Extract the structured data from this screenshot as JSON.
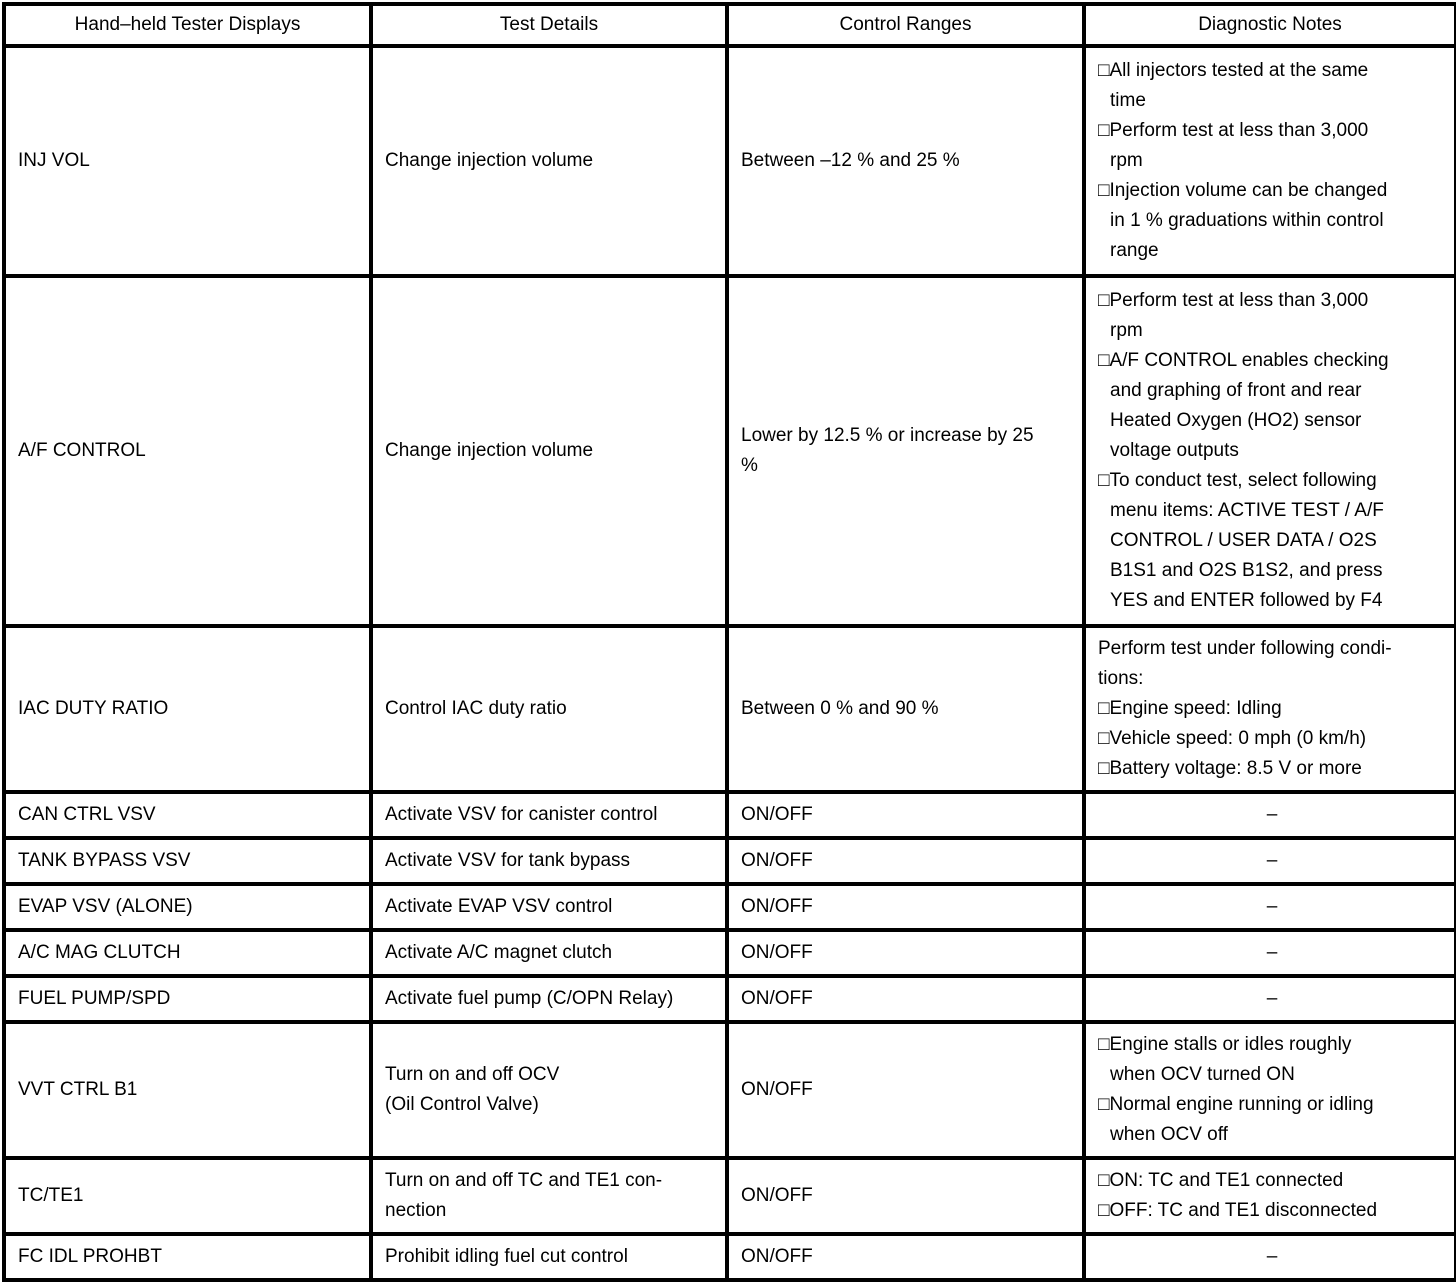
{
  "table": {
    "bullet_char": "□",
    "headers": [
      "Hand–held Tester Displays",
      "Test Details",
      "Control Ranges",
      "Diagnostic Notes"
    ],
    "empty_note_symbol": "–",
    "rows": [
      {
        "display": "INJ VOL",
        "test_details": "Change injection volume",
        "control_range": "Between –12 % and 25 %",
        "notes": [
          {
            "bullet": true,
            "text": "All injectors tested at the same\ntime"
          },
          {
            "bullet": true,
            "text": "Perform test at less than 3,000\nrpm"
          },
          {
            "bullet": true,
            "text": "Injection volume can be changed\nin 1 % graduations within control\nrange"
          }
        ]
      },
      {
        "display": "A/F CONTROL",
        "test_details": "Change injection volume",
        "control_range": "Lower by 12.5 % or increase by 25\n%",
        "notes": [
          {
            "bullet": true,
            "text": "Perform test at less than 3,000\nrpm"
          },
          {
            "bullet": true,
            "text": "A/F CONTROL enables checking\nand graphing of front and rear\nHeated Oxygen (HO2) sensor\nvoltage outputs"
          },
          {
            "bullet": true,
            "text": "To conduct test, select following\nmenu items: ACTIVE TEST / A/F\nCONTROL / USER DATA / O2S\nB1S1 and O2S B1S2, and press\nYES and ENTER followed by F4"
          }
        ]
      },
      {
        "display": "IAC DUTY RATIO",
        "test_details": "Control IAC duty ratio",
        "control_range": "Between 0 % and 90 %",
        "notes": [
          {
            "bullet": false,
            "text": "Perform test under following condi-\ntions:"
          },
          {
            "bullet": true,
            "text": "Engine speed: Idling"
          },
          {
            "bullet": true,
            "text": "Vehicle speed: 0 mph (0 km/h)"
          },
          {
            "bullet": true,
            "text": "Battery voltage: 8.5 V or more"
          }
        ]
      },
      {
        "display": "CAN CTRL VSV",
        "test_details": "Activate VSV for canister control",
        "control_range": "ON/OFF",
        "notes": "–"
      },
      {
        "display": "TANK BYPASS VSV",
        "test_details": "Activate VSV for tank bypass",
        "control_range": "ON/OFF",
        "notes": "–"
      },
      {
        "display": "EVAP VSV (ALONE)",
        "test_details": "Activate EVAP VSV control",
        "control_range": "ON/OFF",
        "notes": "–"
      },
      {
        "display": "A/C MAG CLUTCH",
        "test_details": "Activate A/C magnet clutch",
        "control_range": "ON/OFF",
        "notes": "–"
      },
      {
        "display": "FUEL PUMP/SPD",
        "test_details": "Activate fuel pump (C/OPN Relay)",
        "control_range": "ON/OFF",
        "notes": "–"
      },
      {
        "display": "VVT CTRL B1",
        "test_details": "Turn on and off OCV\n(Oil Control Valve)",
        "control_range": "ON/OFF",
        "notes": [
          {
            "bullet": true,
            "text": "Engine stalls or idles roughly\nwhen OCV turned ON"
          },
          {
            "bullet": true,
            "text": "Normal engine running or idling\nwhen OCV off"
          }
        ]
      },
      {
        "display": "TC/TE1",
        "test_details": "Turn on and off TC and TE1 con-\nnection",
        "control_range": "ON/OFF",
        "notes": [
          {
            "bullet": true,
            "text": "ON: TC and TE1 connected"
          },
          {
            "bullet": true,
            "text": "OFF: TC and TE1 disconnected"
          }
        ]
      },
      {
        "display": "FC IDL PROHBT",
        "test_details": "Prohibit idling fuel cut control",
        "control_range": "ON/OFF",
        "notes": "–"
      }
    ]
  }
}
